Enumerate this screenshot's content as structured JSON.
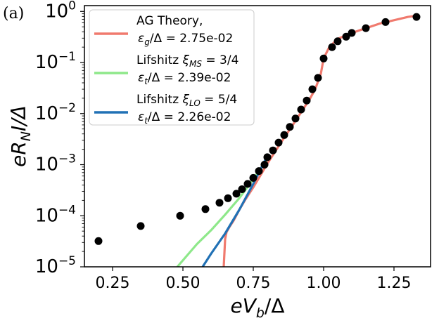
{
  "chart_data": {
    "type": "line",
    "panel_label": "(a)",
    "xlabel": "eV_b/Δ",
    "ylabel": "eR_N I/Δ",
    "xlim": [
      0.15,
      1.38
    ],
    "ylim": [
      1e-05,
      1.3
    ],
    "yscale": "log",
    "grid": false,
    "legend_position": "top-left",
    "x_ticks": [
      {
        "value": 0.25,
        "label": "0.25"
      },
      {
        "value": 0.5,
        "label": "0.50"
      },
      {
        "value": 0.75,
        "label": "0.75"
      },
      {
        "value": 1.0,
        "label": "1.00"
      },
      {
        "value": 1.25,
        "label": "1.25"
      }
    ],
    "y_ticks": [
      {
        "value": 1,
        "base": "10",
        "exp": "0"
      },
      {
        "value": 0.1,
        "base": "10",
        "exp": "−1"
      },
      {
        "value": 0.01,
        "base": "10",
        "exp": "−2"
      },
      {
        "value": 0.001,
        "base": "10",
        "exp": "−3"
      },
      {
        "value": 0.0001,
        "base": "10",
        "exp": "−4"
      },
      {
        "value": 1e-05,
        "base": "10",
        "exp": "−5"
      }
    ],
    "series": [
      {
        "name": "data",
        "kind": "scatter",
        "color": "#000000",
        "x": [
          0.2,
          0.35,
          0.49,
          0.58,
          0.63,
          0.66,
          0.69,
          0.71,
          0.73,
          0.75,
          0.77,
          0.79,
          0.8,
          0.82,
          0.84,
          0.86,
          0.88,
          0.9,
          0.92,
          0.94,
          0.96,
          0.98,
          1.0,
          1.03,
          1.05,
          1.08,
          1.1,
          1.15,
          1.22,
          1.33
        ],
        "y": [
          3.2e-05,
          6.3e-05,
          0.0001,
          0.000135,
          0.00018,
          0.00022,
          0.00027,
          0.00033,
          0.00042,
          0.00055,
          0.00075,
          0.001,
          0.0014,
          0.0019,
          0.0027,
          0.0038,
          0.0055,
          0.008,
          0.012,
          0.018,
          0.03,
          0.05,
          0.12,
          0.2,
          0.26,
          0.32,
          0.38,
          0.47,
          0.62,
          0.78
        ]
      },
      {
        "name": "AG Theory",
        "kind": "line",
        "color": "#f07a6e",
        "x": [
          0.645,
          0.65,
          0.655,
          0.665,
          0.68,
          0.7,
          0.72,
          0.75,
          0.78,
          0.8,
          0.85,
          0.9,
          0.95,
          0.97,
          0.99,
          1.0,
          1.02,
          1.05,
          1.1,
          1.2,
          1.3,
          1.34
        ],
        "y": [
          1e-05,
          3.5e-05,
          4.8e-05,
          6e-05,
          8e-05,
          0.00013,
          0.0002,
          0.00036,
          0.00068,
          0.00105,
          0.0028,
          0.0072,
          0.019,
          0.03,
          0.06,
          0.12,
          0.2,
          0.29,
          0.38,
          0.58,
          0.78,
          0.84
        ]
      },
      {
        "name": "Lifshitz MS",
        "kind": "line",
        "color": "#8ee88a",
        "x": [
          0.48,
          0.55,
          0.6,
          0.65,
          0.7,
          0.75,
          0.8
        ],
        "y": [
          1e-05,
          2.8e-05,
          5.2e-05,
          0.000105,
          0.00022,
          0.00052,
          0.0013
        ]
      },
      {
        "name": "Lifshitz LO",
        "kind": "line",
        "color": "#2171b5",
        "x": [
          0.57,
          0.6,
          0.65,
          0.7,
          0.75,
          0.8
        ],
        "y": [
          1e-05,
          1.8e-05,
          4.5e-05,
          0.00013,
          0.00042,
          0.0015
        ]
      }
    ],
    "legend": [
      {
        "series": "AG Theory",
        "color": "#f07a6e",
        "line1": "AG Theory,",
        "line2_sym": "ε",
        "line2_sub": "g",
        "line2_rest": "/Δ = 2.75e-02"
      },
      {
        "series": "Lifshitz MS",
        "color": "#8ee88a",
        "line1_text": "Lifshitz ",
        "line1_sym": "ξ",
        "line1_sub": "MS",
        "line1_rest": " = 3/4",
        "line2_sym": "ε",
        "line2_sub": "t",
        "line2_rest": "/Δ = 2.39e-02"
      },
      {
        "series": "Lifshitz LO",
        "color": "#2171b5",
        "line1_text": "Lifshitz  ",
        "line1_sym": "ξ",
        "line1_sub": "LO",
        "line1_rest": " = 5/4",
        "line2_sym": "ε",
        "line2_sub": "t",
        "line2_rest": "/Δ = 2.26e-02"
      }
    ]
  }
}
